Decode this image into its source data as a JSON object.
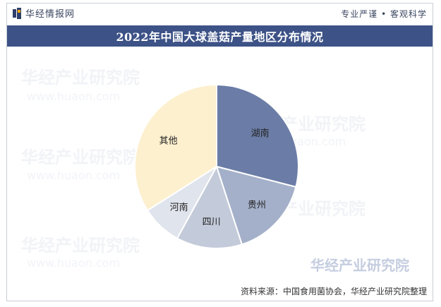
{
  "header": {
    "brand": "华经情报网",
    "slogan": "专业严谨 • 客观科学"
  },
  "chart_data": {
    "type": "pie",
    "title": "2022年中国大球盖菇产量地区分布情况",
    "start_angle_deg": 0,
    "direction": "clockwise",
    "slices": [
      {
        "label": "湖南",
        "value": 29,
        "color": "#6b7da6"
      },
      {
        "label": "贵州",
        "value": 16,
        "color": "#a4b0c9"
      },
      {
        "label": "四川",
        "value": 13,
        "color": "#c3cad9"
      },
      {
        "label": "河南",
        "value": 8,
        "color": "#e0e4ec"
      },
      {
        "label": "其他",
        "value": 34,
        "color": "#fdf0cf"
      }
    ]
  },
  "watermark": {
    "text": "华经产业研究院",
    "url": "www.huaon.com"
  },
  "footer": {
    "source": "资料来源：中国食用菌协会，华经产业研究院整理"
  }
}
